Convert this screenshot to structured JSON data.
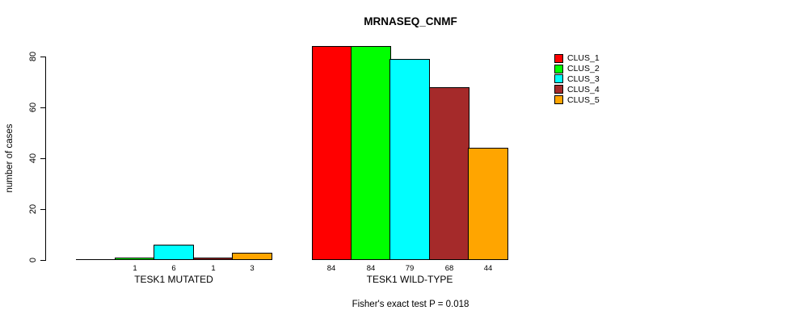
{
  "chart_data": {
    "type": "bar",
    "title": "MRNASEQ_CNMF",
    "ylabel": "number of cases",
    "xlabel": "",
    "ylim": [
      0,
      80
    ],
    "yticks": [
      0,
      20,
      40,
      60,
      80
    ],
    "grid": false,
    "legend_position": "top-right",
    "categories": [
      "TESK1 MUTATED",
      "TESK1 WILD-TYPE"
    ],
    "series": [
      {
        "name": "CLUS_1",
        "color": "#FF0000",
        "values": [
          0,
          84
        ]
      },
      {
        "name": "CLUS_2",
        "color": "#00FF00",
        "values": [
          1,
          84
        ]
      },
      {
        "name": "CLUS_3",
        "color": "#00FFFF",
        "values": [
          6,
          79
        ]
      },
      {
        "name": "CLUS_4",
        "color": "#A52A2A",
        "values": [
          1,
          68
        ]
      },
      {
        "name": "CLUS_5",
        "color": "#FFA500",
        "values": [
          3,
          44
        ]
      }
    ],
    "bar_value_labels": {
      "group_1": [
        "1",
        "6",
        "1",
        "3"
      ],
      "group_2": [
        "84",
        "84",
        "79",
        "68",
        "44"
      ],
      "note": "zero values are unlabeled"
    },
    "footnote": "Fisher's exact test P = 0.018"
  }
}
